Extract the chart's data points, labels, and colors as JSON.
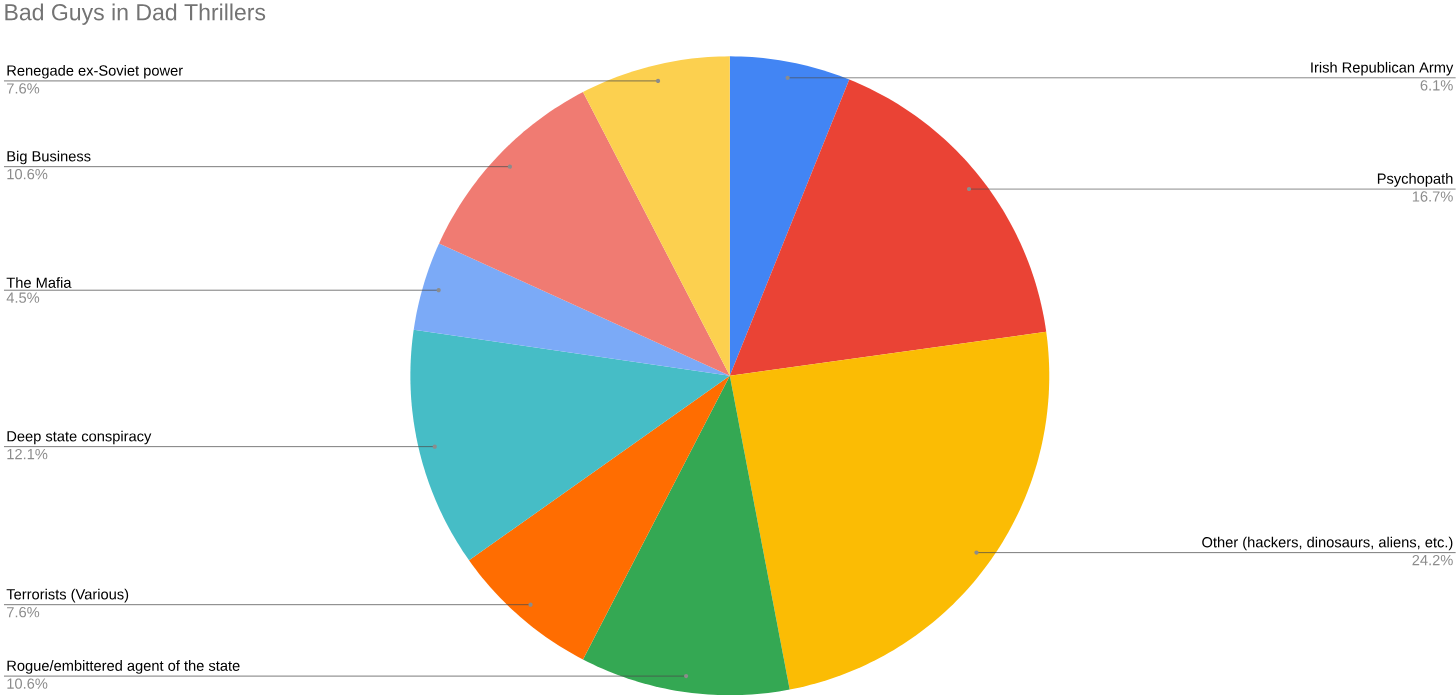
{
  "chart_data": {
    "type": "pie",
    "title": "Bad Guys in Dad Thrillers",
    "categories": [
      "Irish Republican Army",
      "Psychopath",
      "Other (hackers, dinosaurs, aliens, etc.)",
      "Rogue/embittered agent of the state",
      "Terrorists (Various)",
      "Deep state conspiracy",
      "The Mafia",
      "Big Business",
      "Renegade ex-Soviet power"
    ],
    "values": [
      6.1,
      16.7,
      24.2,
      10.6,
      7.6,
      12.1,
      4.5,
      10.6,
      7.6
    ],
    "value_labels": [
      "6.1%",
      "16.7%",
      "24.2%",
      "10.6%",
      "7.6%",
      "12.1%",
      "4.5%",
      "10.6%",
      "7.6%"
    ],
    "colors": [
      "#4285f4",
      "#ea4335",
      "#fbbc04",
      "#34a853",
      "#ff6d01",
      "#46bdc6",
      "#7baaf7",
      "#f07b72",
      "#fcd04f"
    ]
  }
}
